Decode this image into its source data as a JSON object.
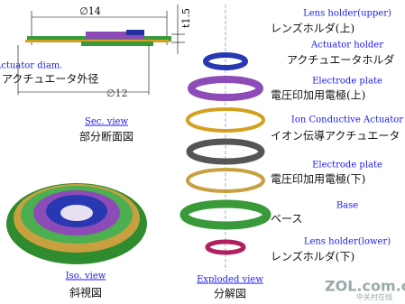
{
  "section_view": {
    "diameter_outer": "∅14",
    "thickness": "t1.5",
    "diameter_label_en": "Actuator diam.",
    "diameter_label_ja": "アクチュエータ外径",
    "diameter_inner": "∅12",
    "caption_en": "Sec. view",
    "caption_ja": "部分断面図"
  },
  "iso_view": {
    "caption_en": "Iso. view",
    "caption_ja": "斜視図"
  },
  "exploded_view": {
    "caption_en": "Exploded view",
    "caption_ja": "分解図",
    "parts": [
      {
        "en": "Lens holder(upper)",
        "ja": "レンズホルダ(上)"
      },
      {
        "en": "Actuator holder",
        "ja": "アクチュエータホルダ"
      },
      {
        "en": "Electrode plate",
        "ja": "電圧印加用電極(上)"
      },
      {
        "en": "Ion Conductive Actuator",
        "ja": "イオン伝導アクチュエータ"
      },
      {
        "en": "Electrode plate",
        "ja": "電圧印加用電極(下)"
      },
      {
        "en": "Base",
        "ja": "ベース"
      },
      {
        "en": "Lens holder(lower)",
        "ja": "レンズホルダ(下)"
      }
    ]
  },
  "watermark": {
    "site": "ZOL.com.cn",
    "name": "中关村在线"
  }
}
